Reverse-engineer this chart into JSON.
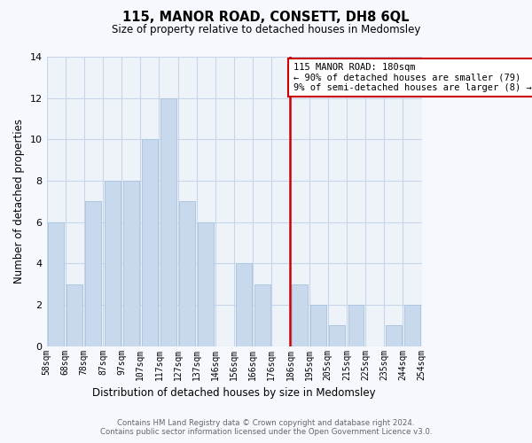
{
  "title": "115, MANOR ROAD, CONSETT, DH8 6QL",
  "subtitle": "Size of property relative to detached houses in Medomsley",
  "xlabel": "Distribution of detached houses by size in Medomsley",
  "ylabel": "Number of detached properties",
  "bin_labels": [
    "58sqm",
    "68sqm",
    "78sqm",
    "87sqm",
    "97sqm",
    "107sqm",
    "117sqm",
    "127sqm",
    "137sqm",
    "146sqm",
    "156sqm",
    "166sqm",
    "176sqm",
    "186sqm",
    "195sqm",
    "205sqm",
    "215sqm",
    "225sqm",
    "235sqm",
    "244sqm",
    "254sqm"
  ],
  "num_bars": 20,
  "counts": [
    6,
    3,
    7,
    8,
    8,
    10,
    12,
    7,
    6,
    0,
    4,
    3,
    0,
    3,
    2,
    1,
    2,
    0,
    1,
    2
  ],
  "bar_color": "#c8d9ee",
  "bar_edge_color": "#aec6e0",
  "vline_color": "#cc0000",
  "vline_pos": 13,
  "ylim": [
    0,
    14
  ],
  "yticks": [
    0,
    2,
    4,
    6,
    8,
    10,
    12,
    14
  ],
  "annotation_title": "115 MANOR ROAD: 180sqm",
  "annotation_line1": "← 90% of detached houses are smaller (79)",
  "annotation_line2": "9% of semi-detached houses are larger (8) →",
  "annotation_box_color": "#ffffff",
  "annotation_box_edge": "#cc0000",
  "footer_line1": "Contains HM Land Registry data © Crown copyright and database right 2024.",
  "footer_line2": "Contains public sector information licensed under the Open Government Licence v3.0.",
  "background_color": "#f5f8fd",
  "plot_bg_color": "#eef3fa",
  "grid_color": "#c8d4e8"
}
